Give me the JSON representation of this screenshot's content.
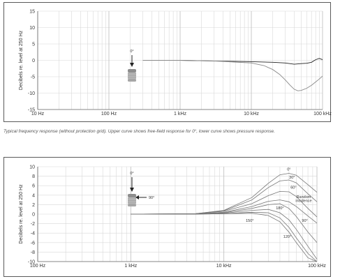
{
  "caption": "Typical frequency response (without protection grid). Upper curve shows free-field response for 0°, lower curve shows pressure response.",
  "chart_data": [
    {
      "type": "line",
      "x_scale": "log",
      "xlim": [
        10,
        100000
      ],
      "ylim": [
        -15,
        15
      ],
      "ylabel": "Decibels re. level at 250 Hz",
      "xticks": [
        {
          "v": 10,
          "label": "10 Hz"
        },
        {
          "v": 100,
          "label": "100 Hz"
        },
        {
          "v": 1000,
          "label": "1 kHz"
        },
        {
          "v": 10000,
          "label": "10 kHz"
        },
        {
          "v": 100000,
          "label": "100 kHz"
        }
      ],
      "yticks": [
        15,
        10,
        5,
        0,
        -5,
        -10,
        -15
      ],
      "grid": true,
      "series": [
        {
          "color": "#222222",
          "x": [
            300,
            1000,
            3000,
            10000,
            20000,
            30000,
            40000,
            50000,
            60000,
            70000,
            80000,
            90000,
            100000
          ],
          "y": [
            0,
            0,
            -0.2,
            -0.4,
            -0.6,
            -0.8,
            -1.2,
            -1.0,
            -0.9,
            -0.6,
            0.2,
            0.6,
            0.2
          ]
        },
        {
          "color": "#8a8a8a",
          "x": [
            300,
            1000,
            3000,
            10000,
            15000,
            20000,
            25000,
            30000,
            35000,
            40000,
            45000,
            50000,
            60000,
            70000,
            80000,
            90000,
            100000
          ],
          "y": [
            0,
            0,
            -0.2,
            -0.8,
            -1.6,
            -2.8,
            -4.3,
            -6.0,
            -7.6,
            -8.8,
            -9.3,
            -9.2,
            -8.5,
            -7.6,
            -6.6,
            -5.7,
            -4.8
          ]
        }
      ],
      "annotations": [
        {
          "text": "0°"
        }
      ]
    },
    {
      "type": "line",
      "x_scale": "log",
      "xlim": [
        100,
        100000
      ],
      "ylim": [
        -10,
        10
      ],
      "ylabel": "Decibels re. level at 250 Hz",
      "xticks": [
        {
          "v": 100,
          "label": "100 Hz"
        },
        {
          "v": 1000,
          "label": "1 kHz"
        },
        {
          "v": 10000,
          "label": "10 kHz"
        },
        {
          "v": 100000,
          "label": "100 kHz"
        }
      ],
      "yticks": [
        10,
        8,
        6,
        4,
        2,
        0,
        -2,
        -4,
        -6,
        -8,
        -10
      ],
      "grid": true,
      "series": [
        {
          "name": "0°",
          "color": "#777777",
          "x": [
            1000,
            5000,
            10000,
            20000,
            30000,
            40000,
            50000,
            60000,
            80000,
            100000
          ],
          "y": [
            0,
            0.1,
            0.8,
            3.5,
            6.5,
            8.3,
            8.6,
            8.2,
            6.2,
            4.6
          ]
        },
        {
          "name": "30°",
          "color": "#777777",
          "x": [
            1000,
            5000,
            10000,
            20000,
            30000,
            40000,
            50000,
            60000,
            80000,
            100000
          ],
          "y": [
            0,
            0.1,
            0.7,
            3.0,
            5.6,
            7.0,
            7.2,
            6.6,
            4.3,
            2.6
          ]
        },
        {
          "name": "60°",
          "color": "#777777",
          "x": [
            1000,
            5000,
            10000,
            20000,
            30000,
            40000,
            50000,
            60000,
            80000,
            100000
          ],
          "y": [
            0,
            0.1,
            0.6,
            2.2,
            3.9,
            4.8,
            4.7,
            3.7,
            1.2,
            -0.6
          ]
        },
        {
          "name": "Random incidence",
          "color": "#777777",
          "x": [
            1000,
            5000,
            10000,
            20000,
            30000,
            40000,
            50000,
            60000,
            80000,
            100000
          ],
          "y": [
            0,
            0.05,
            0.4,
            1.6,
            2.7,
            3.0,
            2.6,
            1.6,
            -0.4,
            -1.9
          ]
        },
        {
          "name": "90°",
          "color": "#777777",
          "x": [
            1000,
            5000,
            10000,
            20000,
            30000,
            40000,
            50000,
            60000,
            80000,
            100000
          ],
          "y": [
            0,
            0,
            0.3,
            1.2,
            2.0,
            2.2,
            1.2,
            -0.5,
            -3.8,
            -6.0
          ]
        },
        {
          "name": "180°",
          "color": "#777777",
          "x": [
            1000,
            5000,
            10000,
            20000,
            30000,
            40000,
            50000,
            60000,
            80000,
            100000
          ],
          "y": [
            0,
            0,
            0.2,
            0.8,
            1.0,
            0.3,
            -1.2,
            -3.2,
            -6.8,
            -9.5
          ]
        },
        {
          "name": "150°",
          "color": "#777777",
          "x": [
            1000,
            5000,
            10000,
            20000,
            30000,
            40000,
            50000,
            60000,
            80000,
            100000
          ],
          "y": [
            0,
            0,
            0.1,
            0.4,
            0.3,
            -0.8,
            -2.8,
            -5.0,
            -8.3,
            -10
          ]
        },
        {
          "name": "120°",
          "color": "#777777",
          "x": [
            1000,
            5000,
            10000,
            20000,
            30000,
            40000,
            50000,
            60000,
            80000,
            100000
          ],
          "y": [
            0,
            0,
            0.1,
            0.2,
            -0.3,
            -1.6,
            -3.8,
            -6.0,
            -9.2,
            -10
          ]
        }
      ],
      "annotations": [
        {
          "text": "0°"
        },
        {
          "text": "90°"
        }
      ],
      "curve_labels": [
        {
          "text": "0°",
          "x": 50000,
          "y": 9.2
        },
        {
          "text": "30°",
          "x": 54000,
          "y": 7.5
        },
        {
          "text": "60°",
          "x": 56000,
          "y": 5.4
        },
        {
          "text": "Random",
          "x": 72000,
          "y": 3.4
        },
        {
          "text": "incidence",
          "x": 72000,
          "y": 2.6
        },
        {
          "text": "180°",
          "x": 40000,
          "y": 1.0
        },
        {
          "text": "150°",
          "x": 19000,
          "y": -1.6
        },
        {
          "text": "90°",
          "x": 74000,
          "y": -1.6
        },
        {
          "text": "120°",
          "x": 48000,
          "y": -5.0
        }
      ]
    }
  ]
}
